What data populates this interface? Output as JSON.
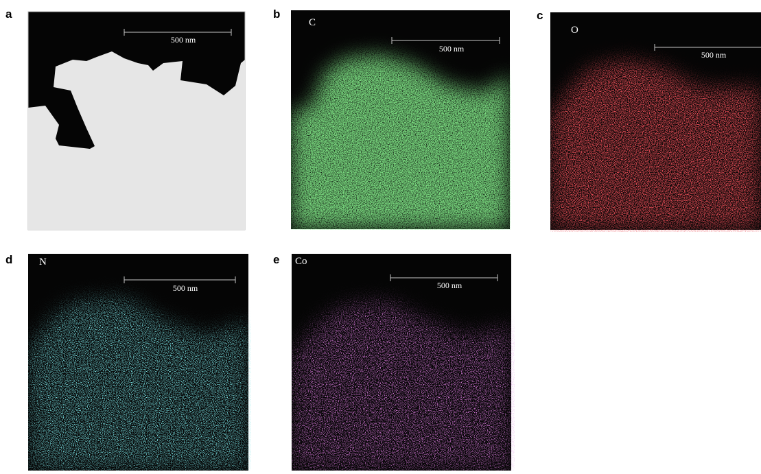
{
  "panels": [
    {
      "label": "a",
      "scale_bar": "500 nm"
    },
    {
      "label": "b",
      "element": "C",
      "scale_bar": "500 nm"
    },
    {
      "label": "c",
      "element": "O",
      "scale_bar": "500 nm"
    },
    {
      "label": "d",
      "element": "N",
      "scale_bar": "500 nm"
    },
    {
      "label": "e",
      "element": "Co",
      "scale_bar": "500 nm"
    }
  ]
}
